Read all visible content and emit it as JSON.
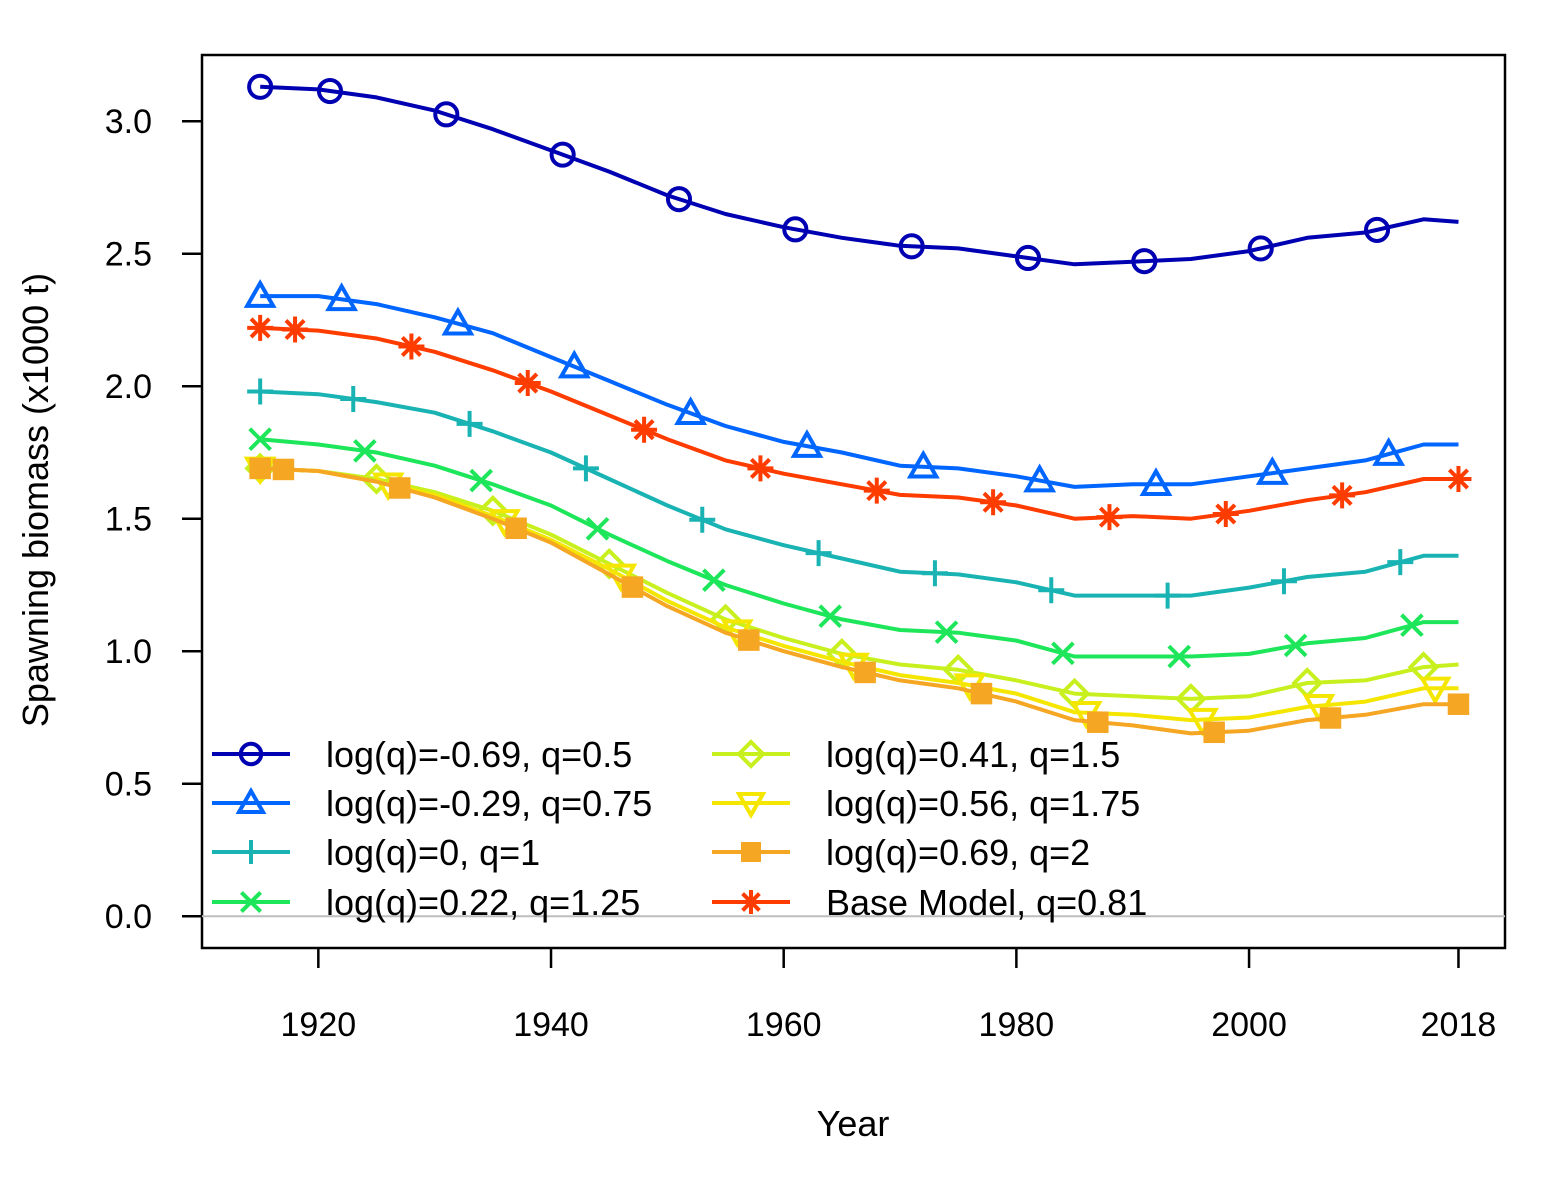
{
  "chart_data": {
    "type": "line",
    "title": "",
    "xlabel": "Year",
    "ylabel": "Spawning biomass (x1000 t)",
    "xlim": [
      1910,
      2022
    ],
    "ylim": [
      -0.12,
      3.25
    ],
    "x_ticks": [
      1920,
      1940,
      1960,
      1980,
      2000,
      2018
    ],
    "y_ticks": [
      0.0,
      0.5,
      1.0,
      1.5,
      2.0,
      2.5,
      3.0
    ],
    "y_tick_labels": [
      "0.0",
      "0.5",
      "1.0",
      "1.5",
      "2.0",
      "2.5",
      "3.0"
    ],
    "zero_line": true,
    "grid": false,
    "legend_position": "bottom-left",
    "x": [
      1915,
      1920,
      1925,
      1930,
      1935,
      1940,
      1945,
      1950,
      1955,
      1960,
      1965,
      1970,
      1975,
      1980,
      1985,
      1990,
      1995,
      2000,
      2005,
      2010,
      2015,
      2018
    ],
    "series": [
      {
        "name": "log(q)=-0.69, q=0.5",
        "color": "#0000b3",
        "marker": "circle",
        "values": [
          3.13,
          3.12,
          3.09,
          3.04,
          2.97,
          2.89,
          2.81,
          2.72,
          2.65,
          2.6,
          2.56,
          2.53,
          2.52,
          2.49,
          2.46,
          2.47,
          2.48,
          2.51,
          2.56,
          2.58,
          2.63,
          2.62
        ],
        "marker_x": [
          1915,
          1921,
          1931,
          1941,
          1951,
          1961,
          1971,
          1981,
          1991,
          2001,
          2011
        ]
      },
      {
        "name": "log(q)=-0.29, q=0.75",
        "color": "#0066ff",
        "marker": "triangle-up",
        "values": [
          2.34,
          2.34,
          2.31,
          2.26,
          2.2,
          2.11,
          2.02,
          1.93,
          1.85,
          1.79,
          1.75,
          1.7,
          1.69,
          1.66,
          1.62,
          1.63,
          1.63,
          1.66,
          1.69,
          1.72,
          1.78,
          1.78
        ],
        "marker_x": [
          1915,
          1922,
          1932,
          1942,
          1952,
          1962,
          1972,
          1982,
          1992,
          2002,
          2012
        ]
      },
      {
        "name": "log(q)=0, q=1",
        "color": "#1ab3b3",
        "marker": "plus",
        "values": [
          1.98,
          1.97,
          1.94,
          1.9,
          1.83,
          1.75,
          1.65,
          1.55,
          1.46,
          1.4,
          1.35,
          1.3,
          1.29,
          1.26,
          1.21,
          1.21,
          1.21,
          1.24,
          1.28,
          1.3,
          1.36,
          1.36
        ],
        "marker_x": [
          1915,
          1923,
          1933,
          1943,
          1953,
          1963,
          1973,
          1983,
          1993,
          2003,
          2013
        ]
      },
      {
        "name": "log(q)=0.22, q=1.25",
        "color": "#1ee65a",
        "marker": "x",
        "values": [
          1.8,
          1.78,
          1.75,
          1.7,
          1.63,
          1.55,
          1.44,
          1.34,
          1.25,
          1.18,
          1.12,
          1.08,
          1.07,
          1.04,
          0.98,
          0.98,
          0.98,
          0.99,
          1.03,
          1.05,
          1.11,
          1.11
        ],
        "marker_x": [
          1915,
          1924,
          1934,
          1944,
          1954,
          1964,
          1974,
          1984,
          1994,
          2004,
          2014
        ]
      },
      {
        "name": "log(q)=0.41, q=1.5",
        "color": "#c8f01e",
        "marker": "diamond",
        "values": [
          1.69,
          1.68,
          1.65,
          1.6,
          1.53,
          1.44,
          1.33,
          1.22,
          1.12,
          1.05,
          0.99,
          0.95,
          0.93,
          0.89,
          0.84,
          0.83,
          0.82,
          0.83,
          0.88,
          0.89,
          0.94,
          0.95
        ],
        "marker_x": [
          1915,
          1925,
          1935,
          1945,
          1955,
          1965,
          1975,
          1985,
          1995,
          2005,
          2015
        ]
      },
      {
        "name": "log(q)=0.56, q=1.75",
        "color": "#f5e600",
        "marker": "triangle-down",
        "values": [
          1.69,
          1.68,
          1.64,
          1.59,
          1.51,
          1.42,
          1.31,
          1.19,
          1.09,
          1.02,
          0.96,
          0.91,
          0.88,
          0.84,
          0.77,
          0.76,
          0.74,
          0.75,
          0.79,
          0.81,
          0.86,
          0.86
        ],
        "marker_x": [
          1915,
          1926,
          1936,
          1946,
          1956,
          1966,
          1976,
          1986,
          1996,
          2006,
          2016
        ]
      },
      {
        "name": "log(q)=0.69, q=2",
        "color": "#f5a623",
        "marker": "square",
        "values": [
          1.69,
          1.68,
          1.64,
          1.58,
          1.5,
          1.41,
          1.29,
          1.17,
          1.07,
          1.0,
          0.94,
          0.89,
          0.86,
          0.81,
          0.74,
          0.72,
          0.69,
          0.7,
          0.74,
          0.76,
          0.8,
          0.8
        ],
        "marker_x": [
          1915,
          1917,
          1927,
          1937,
          1947,
          1957,
          1967,
          1977,
          1987,
          1997,
          2007,
          2018
        ]
      },
      {
        "name": "Base Model, q=0.81",
        "color": "#ff3c00",
        "marker": "asterisk",
        "values": [
          2.22,
          2.21,
          2.18,
          2.13,
          2.06,
          1.98,
          1.89,
          1.8,
          1.72,
          1.67,
          1.63,
          1.59,
          1.58,
          1.55,
          1.5,
          1.51,
          1.5,
          1.53,
          1.57,
          1.6,
          1.65,
          1.65
        ],
        "marker_x": [
          1915,
          1918,
          1928,
          1938,
          1948,
          1958,
          1968,
          1978,
          1988,
          1998,
          2008,
          2018
        ]
      }
    ]
  }
}
